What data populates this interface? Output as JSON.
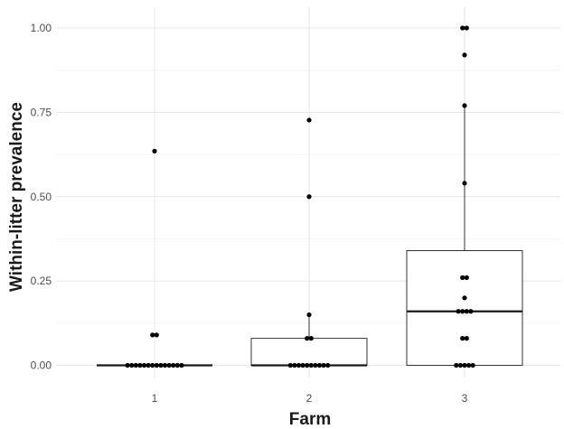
{
  "chart_data": {
    "type": "box",
    "xlabel": "Farm",
    "ylabel": "Within-litter prevalence",
    "categories": [
      "1",
      "2",
      "3"
    ],
    "ylim": [
      -0.03,
      1.03
    ],
    "yticks": [
      {
        "value": 0,
        "label": "0.00"
      },
      {
        "value": 0.25,
        "label": "0.25"
      },
      {
        "value": 0.5,
        "label": "0.50"
      },
      {
        "value": 0.75,
        "label": "0.75"
      },
      {
        "value": 1.0,
        "label": "1.00"
      }
    ],
    "grid": true,
    "legend": "none",
    "boxes": [
      {
        "category": "1",
        "q1": 0,
        "median": 0,
        "q3": 0,
        "whisker_low": 0,
        "whisker_high": 0
      },
      {
        "category": "2",
        "q1": 0,
        "median": 0,
        "q3": 0.08,
        "whisker_low": 0,
        "whisker_high": 0.15
      },
      {
        "category": "3",
        "q1": 0,
        "median": 0.16,
        "q3": 0.34,
        "whisker_low": 0,
        "whisker_high": 0.77
      }
    ],
    "points": [
      {
        "category": "1",
        "values": [
          0,
          0,
          0,
          0,
          0,
          0,
          0,
          0,
          0,
          0,
          0,
          0,
          0,
          0,
          0.09,
          0.09,
          0.635
        ]
      },
      {
        "category": "2",
        "values": [
          0,
          0,
          0,
          0,
          0,
          0,
          0,
          0,
          0,
          0,
          0.08,
          0.08,
          0.15,
          0.5,
          0.727
        ]
      },
      {
        "category": "3",
        "values": [
          0,
          0,
          0,
          0,
          0,
          0.08,
          0.08,
          0.16,
          0.16,
          0.16,
          0.16,
          0.2,
          0.26,
          0.26,
          0.54,
          0.77,
          0.92,
          1.0,
          1.0
        ]
      }
    ]
  }
}
